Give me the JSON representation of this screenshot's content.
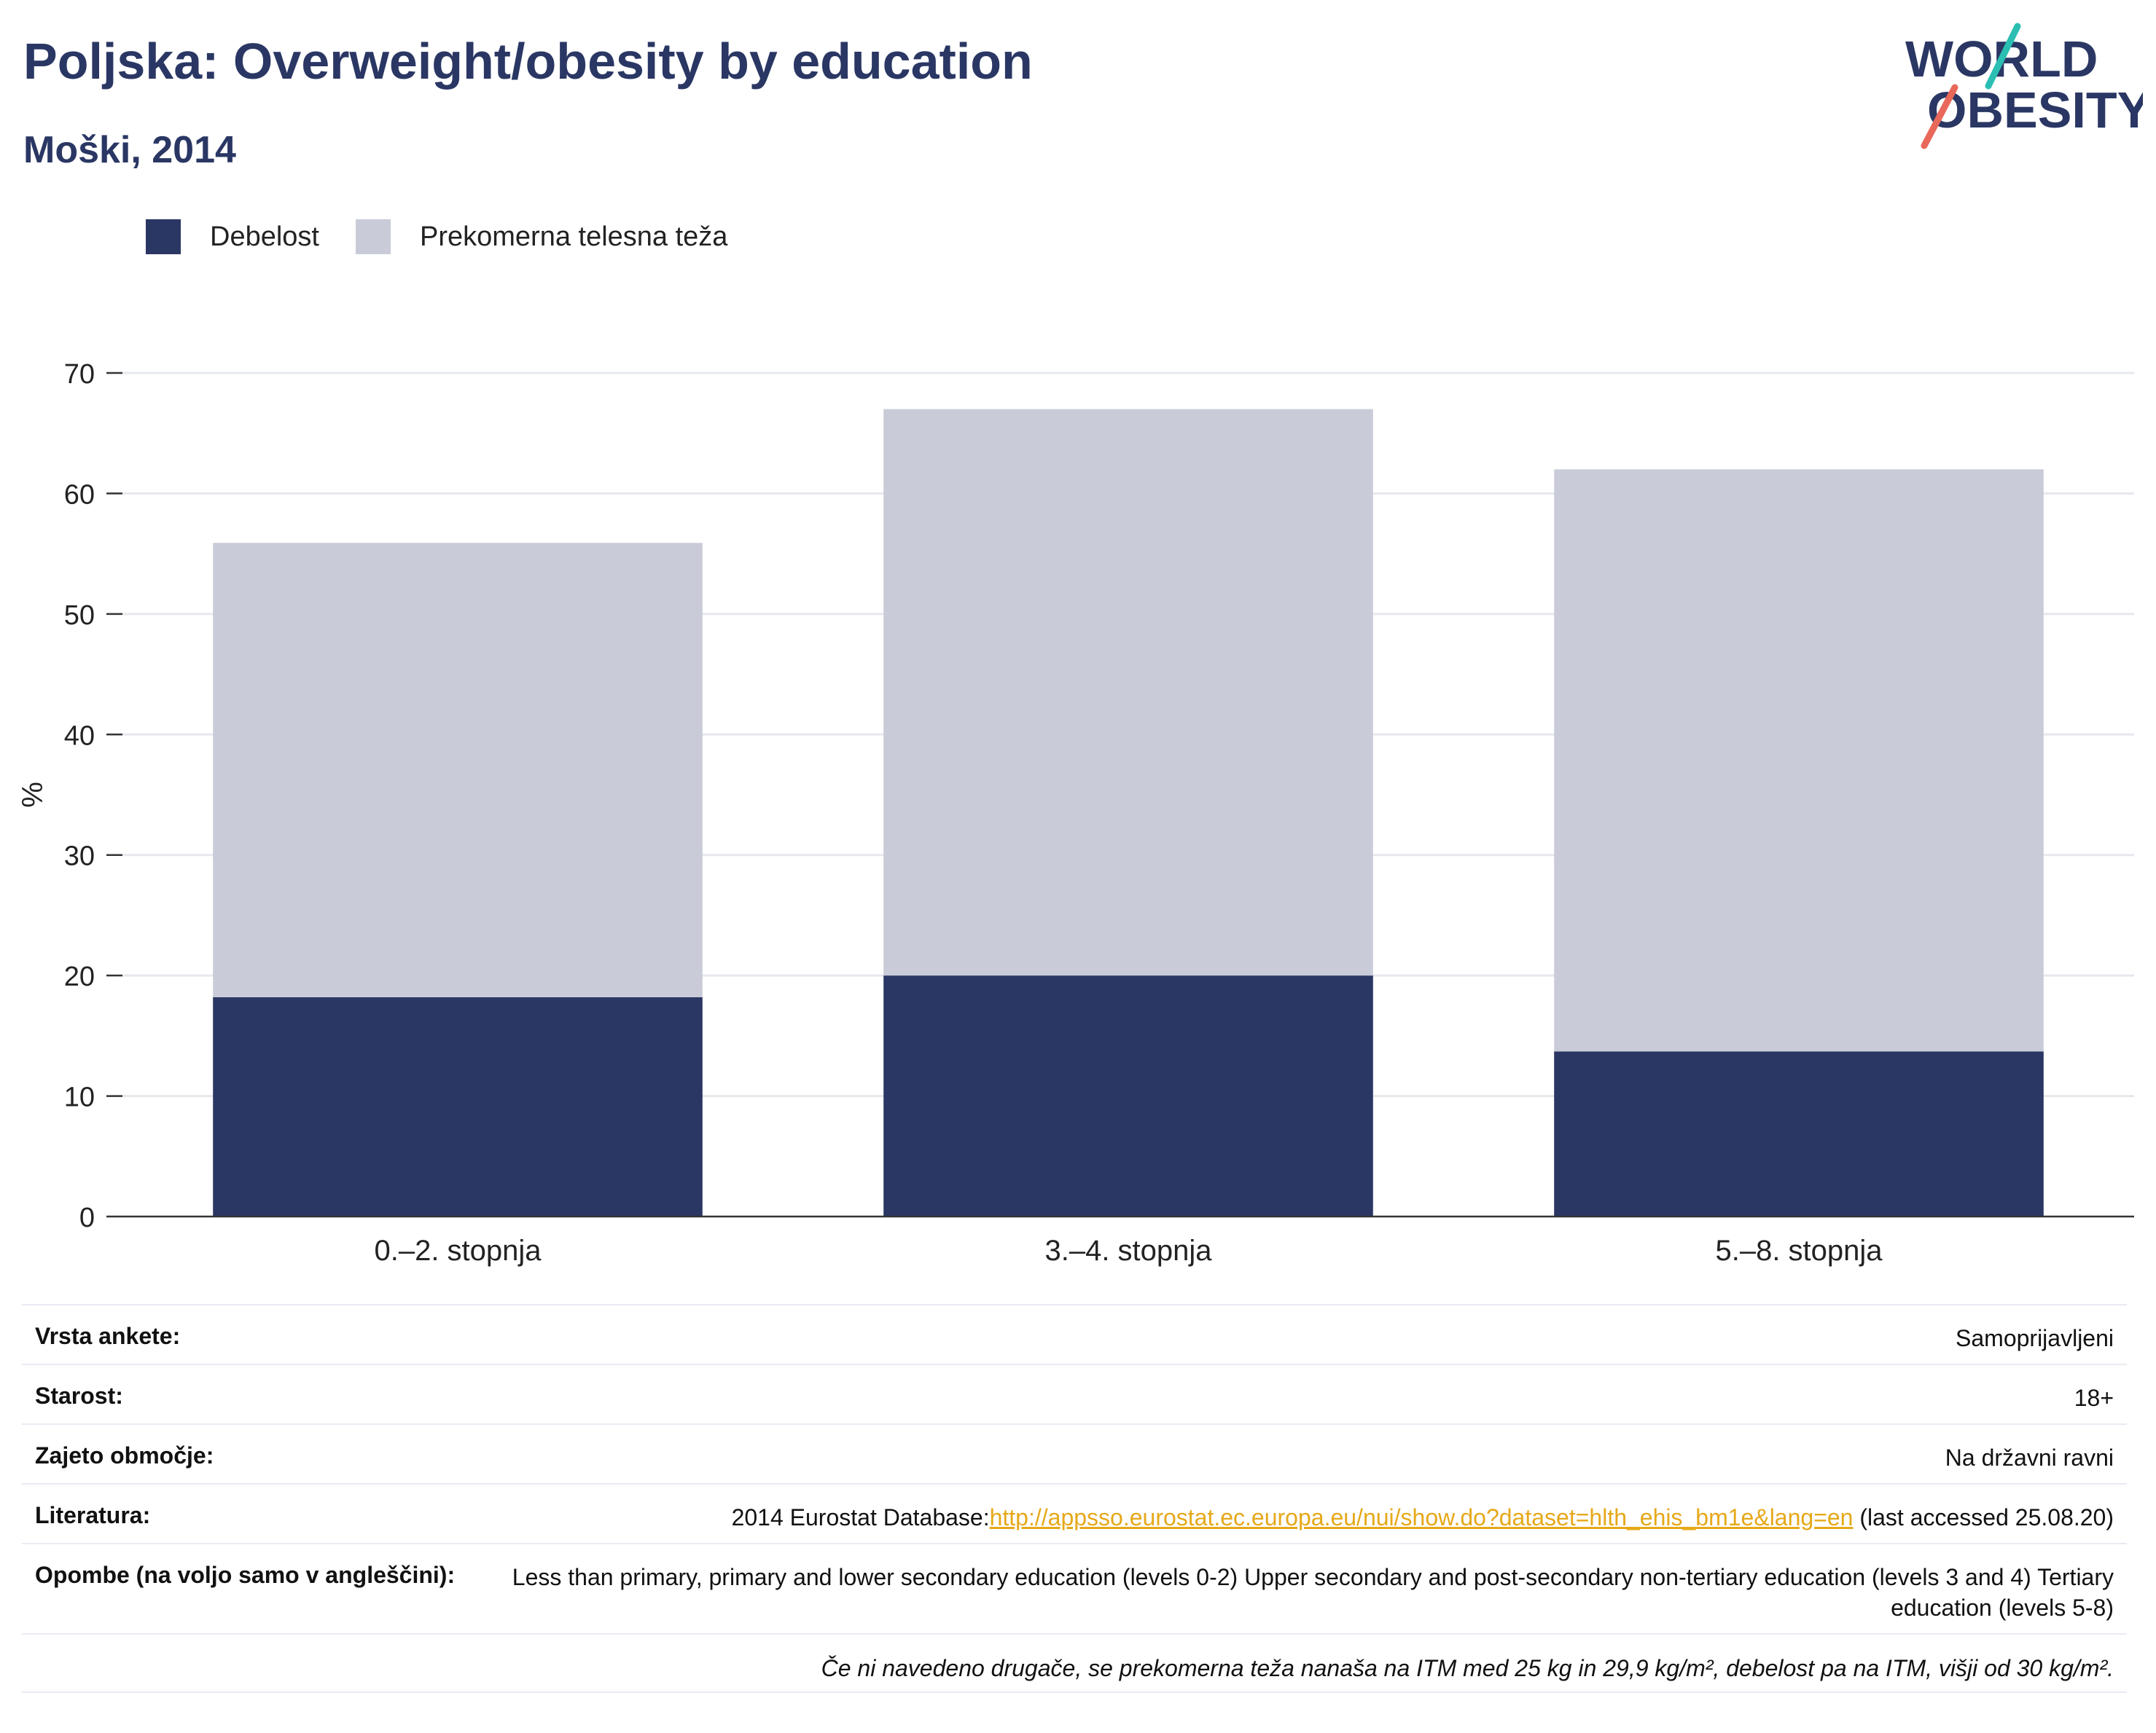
{
  "header": {
    "title": "Poljska: Overweight/obesity by education",
    "subtitle": "Moški, 2014"
  },
  "logo": {
    "line1": "WORLD",
    "line2": "OBESITY",
    "icon": "world-obesity-logo"
  },
  "colors": {
    "obesity": "#2a3764",
    "overweight": "#c9ccd8",
    "link": "#e6a819",
    "accent_teal": "#2bbfb3",
    "accent_coral": "#e8685a"
  },
  "chart_data": {
    "type": "bar",
    "stacked": true,
    "categories": [
      "0.–2. stopnja",
      "3.–4. stopnja",
      "5.–8. stopnja"
    ],
    "series": [
      {
        "name": "Debelost",
        "values": [
          18.2,
          20.0,
          13.7
        ]
      },
      {
        "name": "Prekomerna telesna teža",
        "values": [
          37.7,
          47.0,
          48.3
        ]
      }
    ],
    "ylabel": "%",
    "ylim": [
      0,
      70
    ],
    "yticks": [
      0,
      10,
      20,
      30,
      40,
      50,
      60,
      70
    ],
    "grid": true,
    "legend_position": "top-left"
  },
  "meta": {
    "rows": [
      {
        "key": "Vrsta ankete:",
        "value": "Samoprijavljeni"
      },
      {
        "key": "Starost:",
        "value": "18+"
      },
      {
        "key": "Zajeto območje:",
        "value": "Na državni ravni"
      }
    ],
    "literature": {
      "key": "Literatura:",
      "prefix": "2014 Eurostat Database:",
      "link": "http://appsso.eurostat.ec.europa.eu/nui/show.do?dataset=hlth_ehis_bm1e&lang=en",
      "suffix": " (last accessed 25.08.20)"
    },
    "notes": {
      "key": "Opombe (na voljo samo v angleščini):",
      "value": "Less than primary, primary and lower secondary education (levels 0-2) Upper secondary and post-secondary non-tertiary education (levels 3 and 4) Tertiary education (levels 5-8)"
    },
    "footnote": "Če ni navedeno drugače, se prekomerna teža nanaša na ITM med 25 kg in 29,9 kg/m², debelost pa na ITM, višji od 30 kg/m²."
  }
}
